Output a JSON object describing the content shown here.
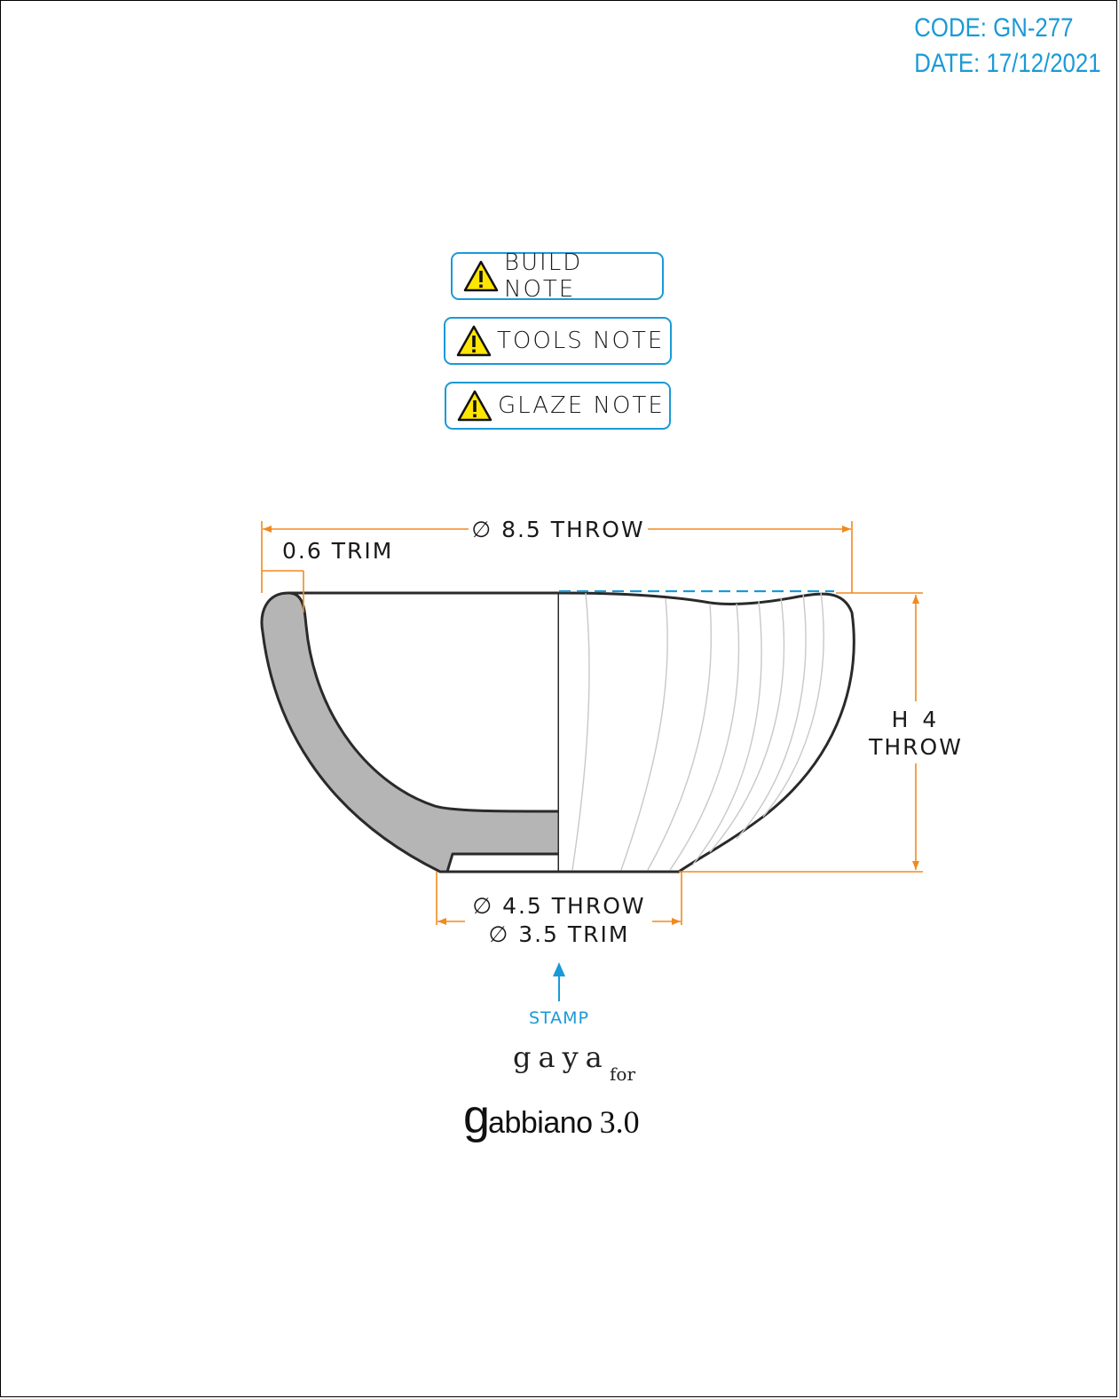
{
  "header": {
    "code": "CODE: GN-277",
    "date": "DATE: 17/12/2021"
  },
  "notes": [
    {
      "label": "BUILD NOTE",
      "icon": "warning-icon"
    },
    {
      "label": "TOOLS NOTE",
      "icon": "warning-icon"
    },
    {
      "label": "GLAZE NOTE",
      "icon": "warning-icon"
    }
  ],
  "dimensions": {
    "rim_diameter": "∅ 8.5 THROW",
    "wall_trim": "0.6 TRIM",
    "height_line1": "H 4",
    "height_line2": "THROW",
    "foot_throw": "∅ 4.5 THROW",
    "foot_trim": "∅ 3.5 TRIM"
  },
  "stamp": {
    "label": "STAMP"
  },
  "brand": {
    "line1": "gaya",
    "connector": "for",
    "logo_initial": "g",
    "logo_rest": "abbiano",
    "version": "3.0"
  },
  "colors": {
    "dimension": "#f08a1e",
    "accent": "#1a9ad6",
    "section_fill": "#b5b5b5",
    "outline": "#2a2a2a",
    "warning_yellow": "#ffe600"
  }
}
